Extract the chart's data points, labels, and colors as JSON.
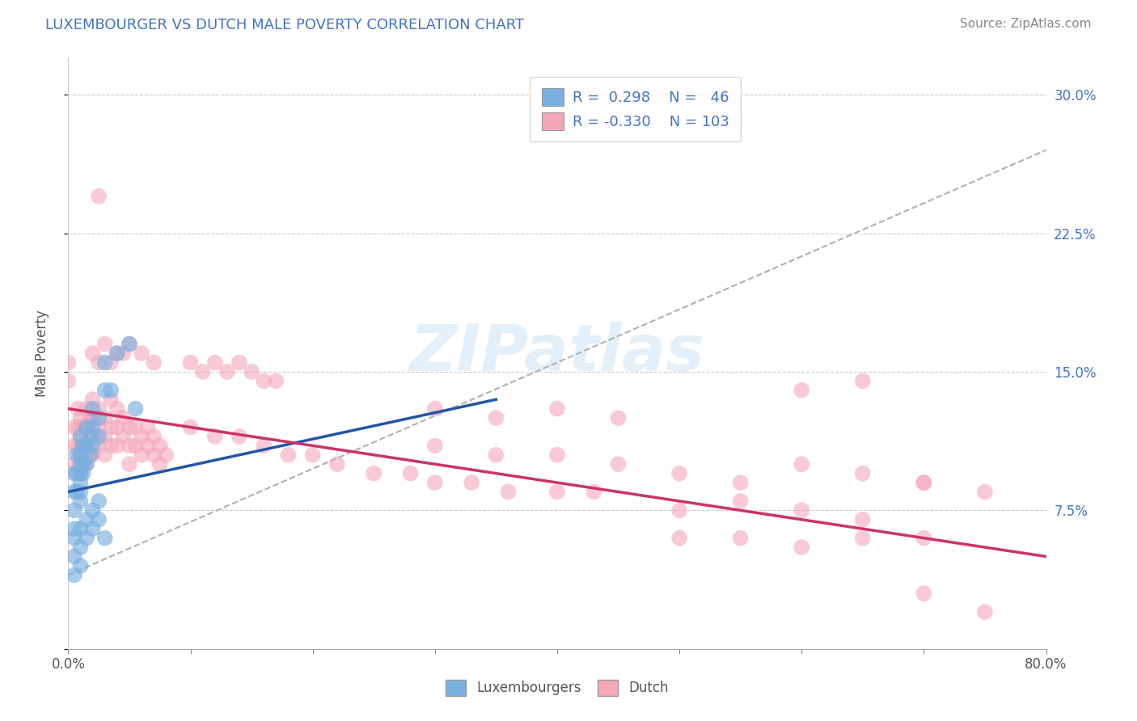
{
  "title": "LUXEMBOURGER VS DUTCH MALE POVERTY CORRELATION CHART",
  "source": "Source: ZipAtlas.com",
  "ylabel": "Male Poverty",
  "x_min": 0.0,
  "x_max": 0.8,
  "y_min": 0.0,
  "y_max": 0.32,
  "blue_color": "#7ab0e0",
  "pink_color": "#f4a7b9",
  "blue_line_color": "#2255aa",
  "pink_line_color": "#cc3366",
  "trend_line_color": "#b0b0b0",
  "watermark": "ZIPatlas",
  "blue_scatter": [
    [
      0.005,
      0.095
    ],
    [
      0.005,
      0.085
    ],
    [
      0.005,
      0.075
    ],
    [
      0.005,
      0.065
    ],
    [
      0.007,
      0.105
    ],
    [
      0.007,
      0.095
    ],
    [
      0.007,
      0.085
    ],
    [
      0.01,
      0.115
    ],
    [
      0.01,
      0.105
    ],
    [
      0.01,
      0.1
    ],
    [
      0.01,
      0.095
    ],
    [
      0.01,
      0.09
    ],
    [
      0.01,
      0.085
    ],
    [
      0.01,
      0.08
    ],
    [
      0.012,
      0.11
    ],
    [
      0.012,
      0.1
    ],
    [
      0.012,
      0.095
    ],
    [
      0.015,
      0.12
    ],
    [
      0.015,
      0.11
    ],
    [
      0.015,
      0.1
    ],
    [
      0.018,
      0.115
    ],
    [
      0.018,
      0.105
    ],
    [
      0.02,
      0.13
    ],
    [
      0.02,
      0.12
    ],
    [
      0.02,
      0.11
    ],
    [
      0.025,
      0.125
    ],
    [
      0.025,
      0.115
    ],
    [
      0.03,
      0.155
    ],
    [
      0.03,
      0.14
    ],
    [
      0.035,
      0.14
    ],
    [
      0.04,
      0.16
    ],
    [
      0.05,
      0.165
    ],
    [
      0.055,
      0.13
    ],
    [
      0.005,
      0.06
    ],
    [
      0.005,
      0.05
    ],
    [
      0.005,
      0.04
    ],
    [
      0.01,
      0.065
    ],
    [
      0.01,
      0.055
    ],
    [
      0.01,
      0.045
    ],
    [
      0.015,
      0.07
    ],
    [
      0.015,
      0.06
    ],
    [
      0.02,
      0.075
    ],
    [
      0.02,
      0.065
    ],
    [
      0.025,
      0.08
    ],
    [
      0.025,
      0.07
    ],
    [
      0.03,
      0.06
    ]
  ],
  "pink_scatter": [
    [
      0.0,
      0.155
    ],
    [
      0.0,
      0.145
    ],
    [
      0.005,
      0.12
    ],
    [
      0.005,
      0.11
    ],
    [
      0.005,
      0.1
    ],
    [
      0.008,
      0.13
    ],
    [
      0.008,
      0.12
    ],
    [
      0.008,
      0.11
    ],
    [
      0.01,
      0.125
    ],
    [
      0.01,
      0.115
    ],
    [
      0.01,
      0.105
    ],
    [
      0.01,
      0.095
    ],
    [
      0.012,
      0.12
    ],
    [
      0.012,
      0.11
    ],
    [
      0.012,
      0.1
    ],
    [
      0.015,
      0.13
    ],
    [
      0.015,
      0.12
    ],
    [
      0.015,
      0.11
    ],
    [
      0.015,
      0.1
    ],
    [
      0.018,
      0.125
    ],
    [
      0.018,
      0.115
    ],
    [
      0.018,
      0.105
    ],
    [
      0.02,
      0.135
    ],
    [
      0.02,
      0.125
    ],
    [
      0.02,
      0.115
    ],
    [
      0.02,
      0.105
    ],
    [
      0.025,
      0.13
    ],
    [
      0.025,
      0.12
    ],
    [
      0.025,
      0.11
    ],
    [
      0.03,
      0.125
    ],
    [
      0.03,
      0.115
    ],
    [
      0.03,
      0.105
    ],
    [
      0.035,
      0.135
    ],
    [
      0.035,
      0.12
    ],
    [
      0.035,
      0.11
    ],
    [
      0.04,
      0.13
    ],
    [
      0.04,
      0.12
    ],
    [
      0.04,
      0.11
    ],
    [
      0.045,
      0.125
    ],
    [
      0.045,
      0.115
    ],
    [
      0.05,
      0.12
    ],
    [
      0.05,
      0.11
    ],
    [
      0.05,
      0.1
    ],
    [
      0.055,
      0.12
    ],
    [
      0.055,
      0.11
    ],
    [
      0.06,
      0.115
    ],
    [
      0.06,
      0.105
    ],
    [
      0.065,
      0.12
    ],
    [
      0.065,
      0.11
    ],
    [
      0.07,
      0.115
    ],
    [
      0.07,
      0.105
    ],
    [
      0.075,
      0.11
    ],
    [
      0.075,
      0.1
    ],
    [
      0.08,
      0.105
    ],
    [
      0.02,
      0.16
    ],
    [
      0.025,
      0.155
    ],
    [
      0.03,
      0.165
    ],
    [
      0.035,
      0.155
    ],
    [
      0.04,
      0.16
    ],
    [
      0.045,
      0.16
    ],
    [
      0.05,
      0.165
    ],
    [
      0.06,
      0.16
    ],
    [
      0.07,
      0.155
    ],
    [
      0.025,
      0.245
    ],
    [
      0.1,
      0.155
    ],
    [
      0.11,
      0.15
    ],
    [
      0.12,
      0.155
    ],
    [
      0.13,
      0.15
    ],
    [
      0.14,
      0.155
    ],
    [
      0.15,
      0.15
    ],
    [
      0.16,
      0.145
    ],
    [
      0.17,
      0.145
    ],
    [
      0.1,
      0.12
    ],
    [
      0.12,
      0.115
    ],
    [
      0.14,
      0.115
    ],
    [
      0.16,
      0.11
    ],
    [
      0.18,
      0.105
    ],
    [
      0.2,
      0.105
    ],
    [
      0.22,
      0.1
    ],
    [
      0.25,
      0.095
    ],
    [
      0.28,
      0.095
    ],
    [
      0.3,
      0.09
    ],
    [
      0.33,
      0.09
    ],
    [
      0.36,
      0.085
    ],
    [
      0.4,
      0.085
    ],
    [
      0.43,
      0.085
    ],
    [
      0.3,
      0.11
    ],
    [
      0.35,
      0.105
    ],
    [
      0.4,
      0.105
    ],
    [
      0.45,
      0.1
    ],
    [
      0.5,
      0.095
    ],
    [
      0.55,
      0.09
    ],
    [
      0.6,
      0.1
    ],
    [
      0.65,
      0.095
    ],
    [
      0.7,
      0.09
    ],
    [
      0.75,
      0.085
    ],
    [
      0.3,
      0.13
    ],
    [
      0.35,
      0.125
    ],
    [
      0.4,
      0.13
    ],
    [
      0.45,
      0.125
    ],
    [
      0.5,
      0.075
    ],
    [
      0.55,
      0.08
    ],
    [
      0.6,
      0.075
    ],
    [
      0.65,
      0.07
    ],
    [
      0.7,
      0.03
    ],
    [
      0.5,
      0.06
    ],
    [
      0.55,
      0.06
    ],
    [
      0.6,
      0.055
    ],
    [
      0.65,
      0.06
    ],
    [
      0.7,
      0.06
    ],
    [
      0.6,
      0.14
    ],
    [
      0.65,
      0.145
    ],
    [
      0.7,
      0.09
    ],
    [
      0.75,
      0.02
    ]
  ],
  "blue_line": [
    [
      0.0,
      0.085
    ],
    [
      0.35,
      0.135
    ]
  ],
  "pink_line": [
    [
      0.0,
      0.13
    ],
    [
      0.8,
      0.05
    ]
  ],
  "trend_line": [
    [
      0.0,
      0.04
    ],
    [
      0.8,
      0.27
    ]
  ]
}
